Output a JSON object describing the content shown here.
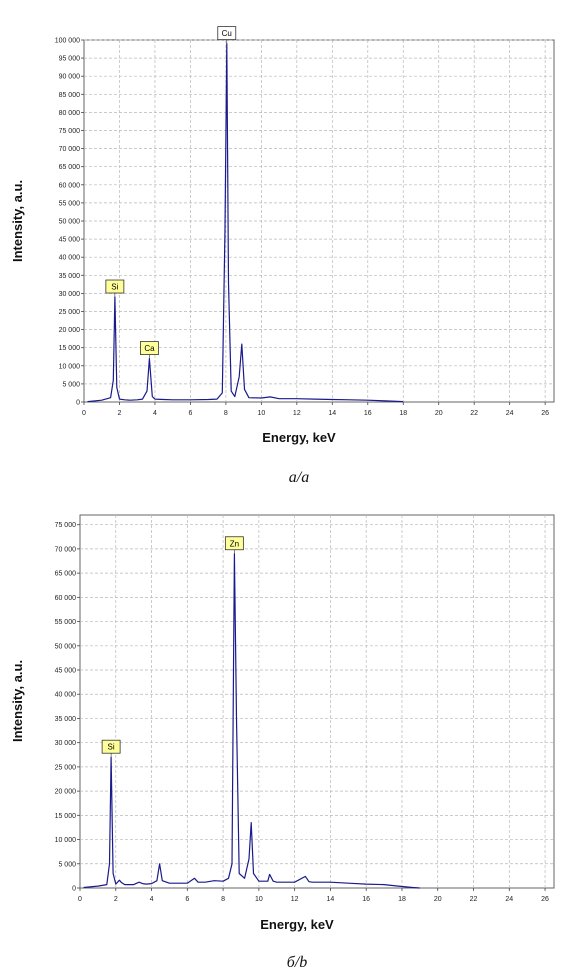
{
  "chart_data": [
    {
      "type": "line",
      "panel_caption": "a/a",
      "xlabel": "Energy, keV",
      "ylabel": "Intensity, a.u.",
      "xlim": [
        0,
        26.5
      ],
      "ylim": [
        0,
        100000
      ],
      "x_ticks": [
        "0",
        "2",
        "4",
        "6",
        "8",
        "10",
        "12",
        "14",
        "16",
        "18",
        "20",
        "22",
        "24",
        "26"
      ],
      "y_ticks": [
        "0",
        "5 000",
        "10 000",
        "15 000",
        "20 000",
        "25 000",
        "30 000",
        "35 000",
        "40 000",
        "45 000",
        "50 000",
        "55 000",
        "60 000",
        "65 000",
        "70 000",
        "75 000",
        "80 000",
        "85 000",
        "90 000",
        "95 000",
        "100 000"
      ],
      "grid": true,
      "line_color": "#1a1a8c",
      "series": [
        {
          "x": [
            0.2,
            0.5,
            1.0,
            1.5,
            1.65,
            1.74,
            1.85,
            2.0,
            2.3,
            2.6,
            3.0,
            3.3,
            3.55,
            3.69,
            3.85,
            4.0,
            4.5,
            5.0,
            6.0,
            7.0,
            7.5,
            7.8,
            7.95,
            8.05,
            8.15,
            8.3,
            8.5,
            8.75,
            8.9,
            9.05,
            9.3,
            10.0,
            10.5,
            11.0,
            12.0,
            13.0,
            14.0,
            15.0,
            16.0,
            17.0,
            18.0
          ],
          "y": [
            100,
            250,
            500,
            1200,
            6000,
            29000,
            4000,
            800,
            600,
            500,
            600,
            800,
            3000,
            12000,
            1500,
            800,
            700,
            600,
            600,
            700,
            800,
            2500,
            48000,
            99000,
            33000,
            3000,
            1500,
            7000,
            16000,
            3500,
            1200,
            1100,
            1400,
            900,
            900,
            800,
            700,
            600,
            500,
            300,
            100
          ]
        }
      ],
      "peak_labels": [
        {
          "text": "Si",
          "x": 1.74,
          "y": 29000,
          "boxed_color": "#ffff99"
        },
        {
          "text": "Ca",
          "x": 3.69,
          "y": 12000,
          "boxed_color": "#ffff99"
        },
        {
          "text": "Cu",
          "x": 8.05,
          "y": 99000,
          "boxed_color": "#ffffff"
        }
      ]
    },
    {
      "type": "line",
      "panel_caption": "б/b",
      "xlabel": "Energy, keV",
      "ylabel": "Intensity, a.u.",
      "xlim": [
        0,
        26.5
      ],
      "ylim": [
        0,
        77000
      ],
      "x_ticks": [
        "0",
        "2",
        "4",
        "6",
        "8",
        "10",
        "12",
        "14",
        "16",
        "18",
        "20",
        "22",
        "24",
        "26"
      ],
      "y_ticks": [
        "0",
        "5 000",
        "10 000",
        "15 000",
        "20 000",
        "25 000",
        "30 000",
        "35 000",
        "40 000",
        "45 000",
        "50 000",
        "55 000",
        "60 000",
        "65 000",
        "70 000",
        "75 000"
      ],
      "grid": true,
      "line_color": "#1a1a8c",
      "series": [
        {
          "x": [
            0.2,
            0.5,
            1.0,
            1.5,
            1.65,
            1.74,
            1.85,
            2.0,
            2.2,
            2.3,
            2.5,
            3.0,
            3.3,
            3.5,
            3.7,
            4.0,
            4.3,
            4.45,
            4.6,
            5.0,
            6.0,
            6.4,
            6.6,
            7.0,
            7.5,
            8.0,
            8.3,
            8.5,
            8.63,
            8.75,
            8.9,
            9.2,
            9.45,
            9.57,
            9.7,
            10.0,
            10.5,
            10.6,
            10.8,
            11.0,
            12.0,
            12.6,
            12.8,
            13.0,
            14.0,
            15.0,
            16.0,
            17.0,
            18.0,
            18.6,
            19.0
          ],
          "y": [
            100,
            200,
            400,
            700,
            5000,
            27000,
            3000,
            800,
            1600,
            1200,
            700,
            700,
            1200,
            900,
            800,
            900,
            1500,
            5000,
            1500,
            1000,
            1000,
            2000,
            1200,
            1200,
            1500,
            1400,
            2000,
            5000,
            69000,
            35000,
            3000,
            2000,
            6000,
            13500,
            3000,
            1400,
            1400,
            2800,
            1400,
            1200,
            1200,
            2400,
            1300,
            1200,
            1200,
            1000,
            800,
            700,
            300,
            100,
            0
          ]
        }
      ],
      "peak_labels": [
        {
          "text": "Si",
          "x": 1.74,
          "y": 27000,
          "boxed_color": "#ffff99"
        },
        {
          "text": "Zn",
          "x": 8.63,
          "y": 69000,
          "boxed_color": "#ffff99"
        }
      ]
    }
  ]
}
